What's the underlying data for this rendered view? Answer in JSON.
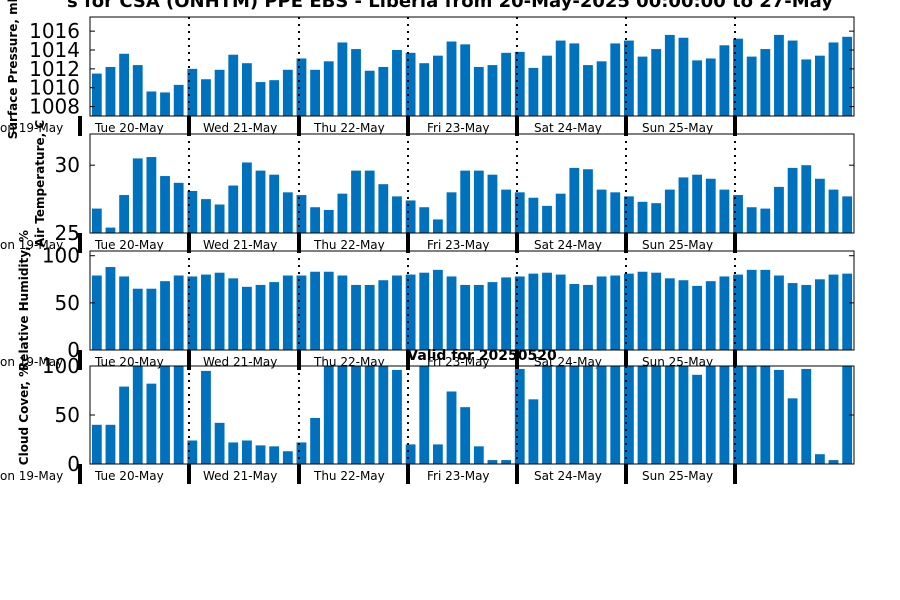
{
  "title": "s for CSA (ONHTM) PPE EBS  - Liberia from 20-May-2025 00:00:00 to 27-May",
  "day_labels": [
    "on 19-May",
    "Tue 20-May",
    "Wed 21-May",
    "Thu 22-May",
    "Fri 23-May",
    "Sat 24-May",
    "Sun 25-May"
  ],
  "colors": {
    "bar": "#0072bd",
    "axis": "#000000",
    "background": "#ffffff"
  },
  "chart_data": [
    {
      "type": "bar",
      "ylabel": "Surface Pressure, mb",
      "ylim": [
        1007,
        1017.5
      ],
      "yticks": [
        1008,
        1010,
        1012,
        1014,
        1016
      ],
      "values": [
        1011.5,
        1012.2,
        1013.6,
        1012.4,
        1009.6,
        1009.5,
        1010.3,
        1012.0,
        1010.9,
        1011.9,
        1013.5,
        1012.6,
        1010.6,
        1010.8,
        1011.9,
        1013.1,
        1011.9,
        1012.8,
        1014.8,
        1014.1,
        1011.8,
        1012.2,
        1014.0,
        1013.7,
        1012.6,
        1013.4,
        1014.9,
        1014.6,
        1012.2,
        1012.4,
        1013.7,
        1013.8,
        1012.1,
        1013.4,
        1015.0,
        1014.7,
        1012.4,
        1012.8,
        1014.7,
        1015.0,
        1013.3,
        1014.1,
        1015.6,
        1015.3,
        1012.9,
        1013.1,
        1014.5,
        1015.2,
        1013.3,
        1014.1,
        1015.6,
        1015.0,
        1013.0,
        1013.4,
        1014.8,
        1015.4
      ]
    },
    {
      "type": "bar",
      "ylabel": "Air Temperature, C",
      "ylim": [
        25,
        32.3
      ],
      "yticks": [
        25,
        30
      ],
      "values": [
        26.8,
        25.4,
        27.8,
        30.5,
        30.6,
        29.2,
        28.7,
        28.1,
        27.5,
        27.1,
        28.5,
        30.2,
        29.6,
        29.3,
        28.0,
        27.8,
        26.9,
        26.7,
        27.9,
        29.6,
        29.6,
        28.6,
        27.7,
        27.4,
        26.9,
        26.0,
        28.0,
        29.6,
        29.6,
        29.3,
        28.2,
        28.0,
        27.6,
        27.0,
        27.9,
        29.8,
        29.7,
        28.2,
        28.0,
        27.7,
        27.3,
        27.2,
        28.2,
        29.1,
        29.3,
        29.0,
        28.2,
        27.8,
        26.9,
        26.8,
        28.4,
        29.8,
        30.0,
        29.0,
        28.2,
        27.7
      ]
    },
    {
      "type": "bar",
      "ylabel": "Relative Humidity, %",
      "ylim": [
        0,
        105
      ],
      "yticks": [
        0,
        50,
        100
      ],
      "values": [
        79,
        88,
        78,
        65,
        65,
        73,
        79,
        78,
        80,
        82,
        76,
        67,
        69,
        72,
        79,
        79,
        83,
        83,
        79,
        69,
        69,
        74,
        79,
        80,
        82,
        85,
        78,
        69,
        69,
        72,
        77,
        78,
        81,
        82,
        80,
        70,
        69,
        78,
        79,
        81,
        83,
        82,
        76,
        74,
        68,
        73,
        78,
        80,
        85,
        85,
        79,
        71,
        69,
        75,
        80,
        81
      ]
    },
    {
      "type": "bar",
      "title": "Valid for 20250520",
      "ylabel": "Cloud Cover, %",
      "ylim": [
        0,
        100
      ],
      "yticks": [
        0,
        50,
        100
      ],
      "values": [
        40,
        40,
        79,
        100,
        82,
        100,
        100,
        24,
        95,
        42,
        22,
        24,
        19,
        18,
        13,
        22,
        47,
        100,
        100,
        100,
        100,
        100,
        96,
        20,
        100,
        20,
        74,
        58,
        18,
        4,
        4,
        97,
        66,
        100,
        100,
        100,
        100,
        100,
        100,
        100,
        100,
        100,
        100,
        100,
        91,
        100,
        100,
        100,
        100,
        100,
        96,
        67,
        97,
        10,
        4,
        100
      ]
    }
  ]
}
